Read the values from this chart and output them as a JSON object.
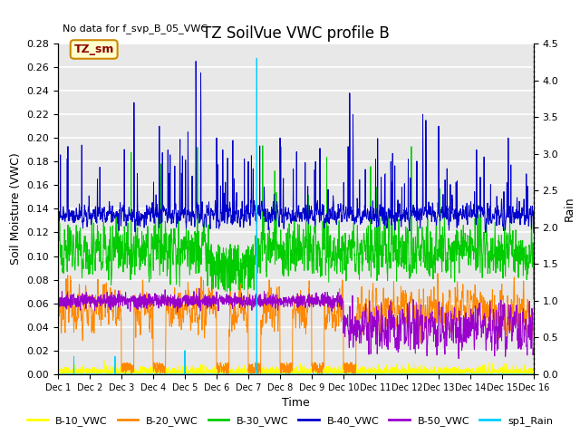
{
  "title": "TZ SoilVue VWC profile B",
  "no_data_text": "No data for f_svp_B_05_VWC",
  "tz_sm_label": "TZ_sm",
  "xlabel": "Time",
  "ylabel": "Soil Moisture (VWC)",
  "ylabel_right": "Rain",
  "ylim_left": [
    0.0,
    0.28
  ],
  "ylim_right": [
    0.0,
    4.5
  ],
  "xlim": [
    0,
    15
  ],
  "colors": {
    "B10": "#ffff00",
    "B20": "#ff8800",
    "B30": "#00cc00",
    "B40": "#0000cc",
    "B50": "#9900cc",
    "Rain": "#00ccff"
  },
  "legend": [
    {
      "label": "B-10_VWC",
      "color": "#ffff00"
    },
    {
      "label": "B-20_VWC",
      "color": "#ff8800"
    },
    {
      "label": "B-30_VWC",
      "color": "#00cc00"
    },
    {
      "label": "B-40_VWC",
      "color": "#0000cc"
    },
    {
      "label": "B-50_VWC",
      "color": "#9900cc"
    },
    {
      "label": "sp1_Rain",
      "color": "#00ccff"
    }
  ],
  "background_color": "#e8e8e8",
  "grid_color": "#ffffff",
  "yticks_left": [
    0.0,
    0.02,
    0.04,
    0.06,
    0.08,
    0.1,
    0.12,
    0.14,
    0.16,
    0.18,
    0.2,
    0.22,
    0.24,
    0.26,
    0.28
  ],
  "yticks_right": [
    0.0,
    0.5,
    1.0,
    1.5,
    2.0,
    2.5,
    3.0,
    3.5,
    4.0,
    4.5
  ],
  "seed": 42
}
